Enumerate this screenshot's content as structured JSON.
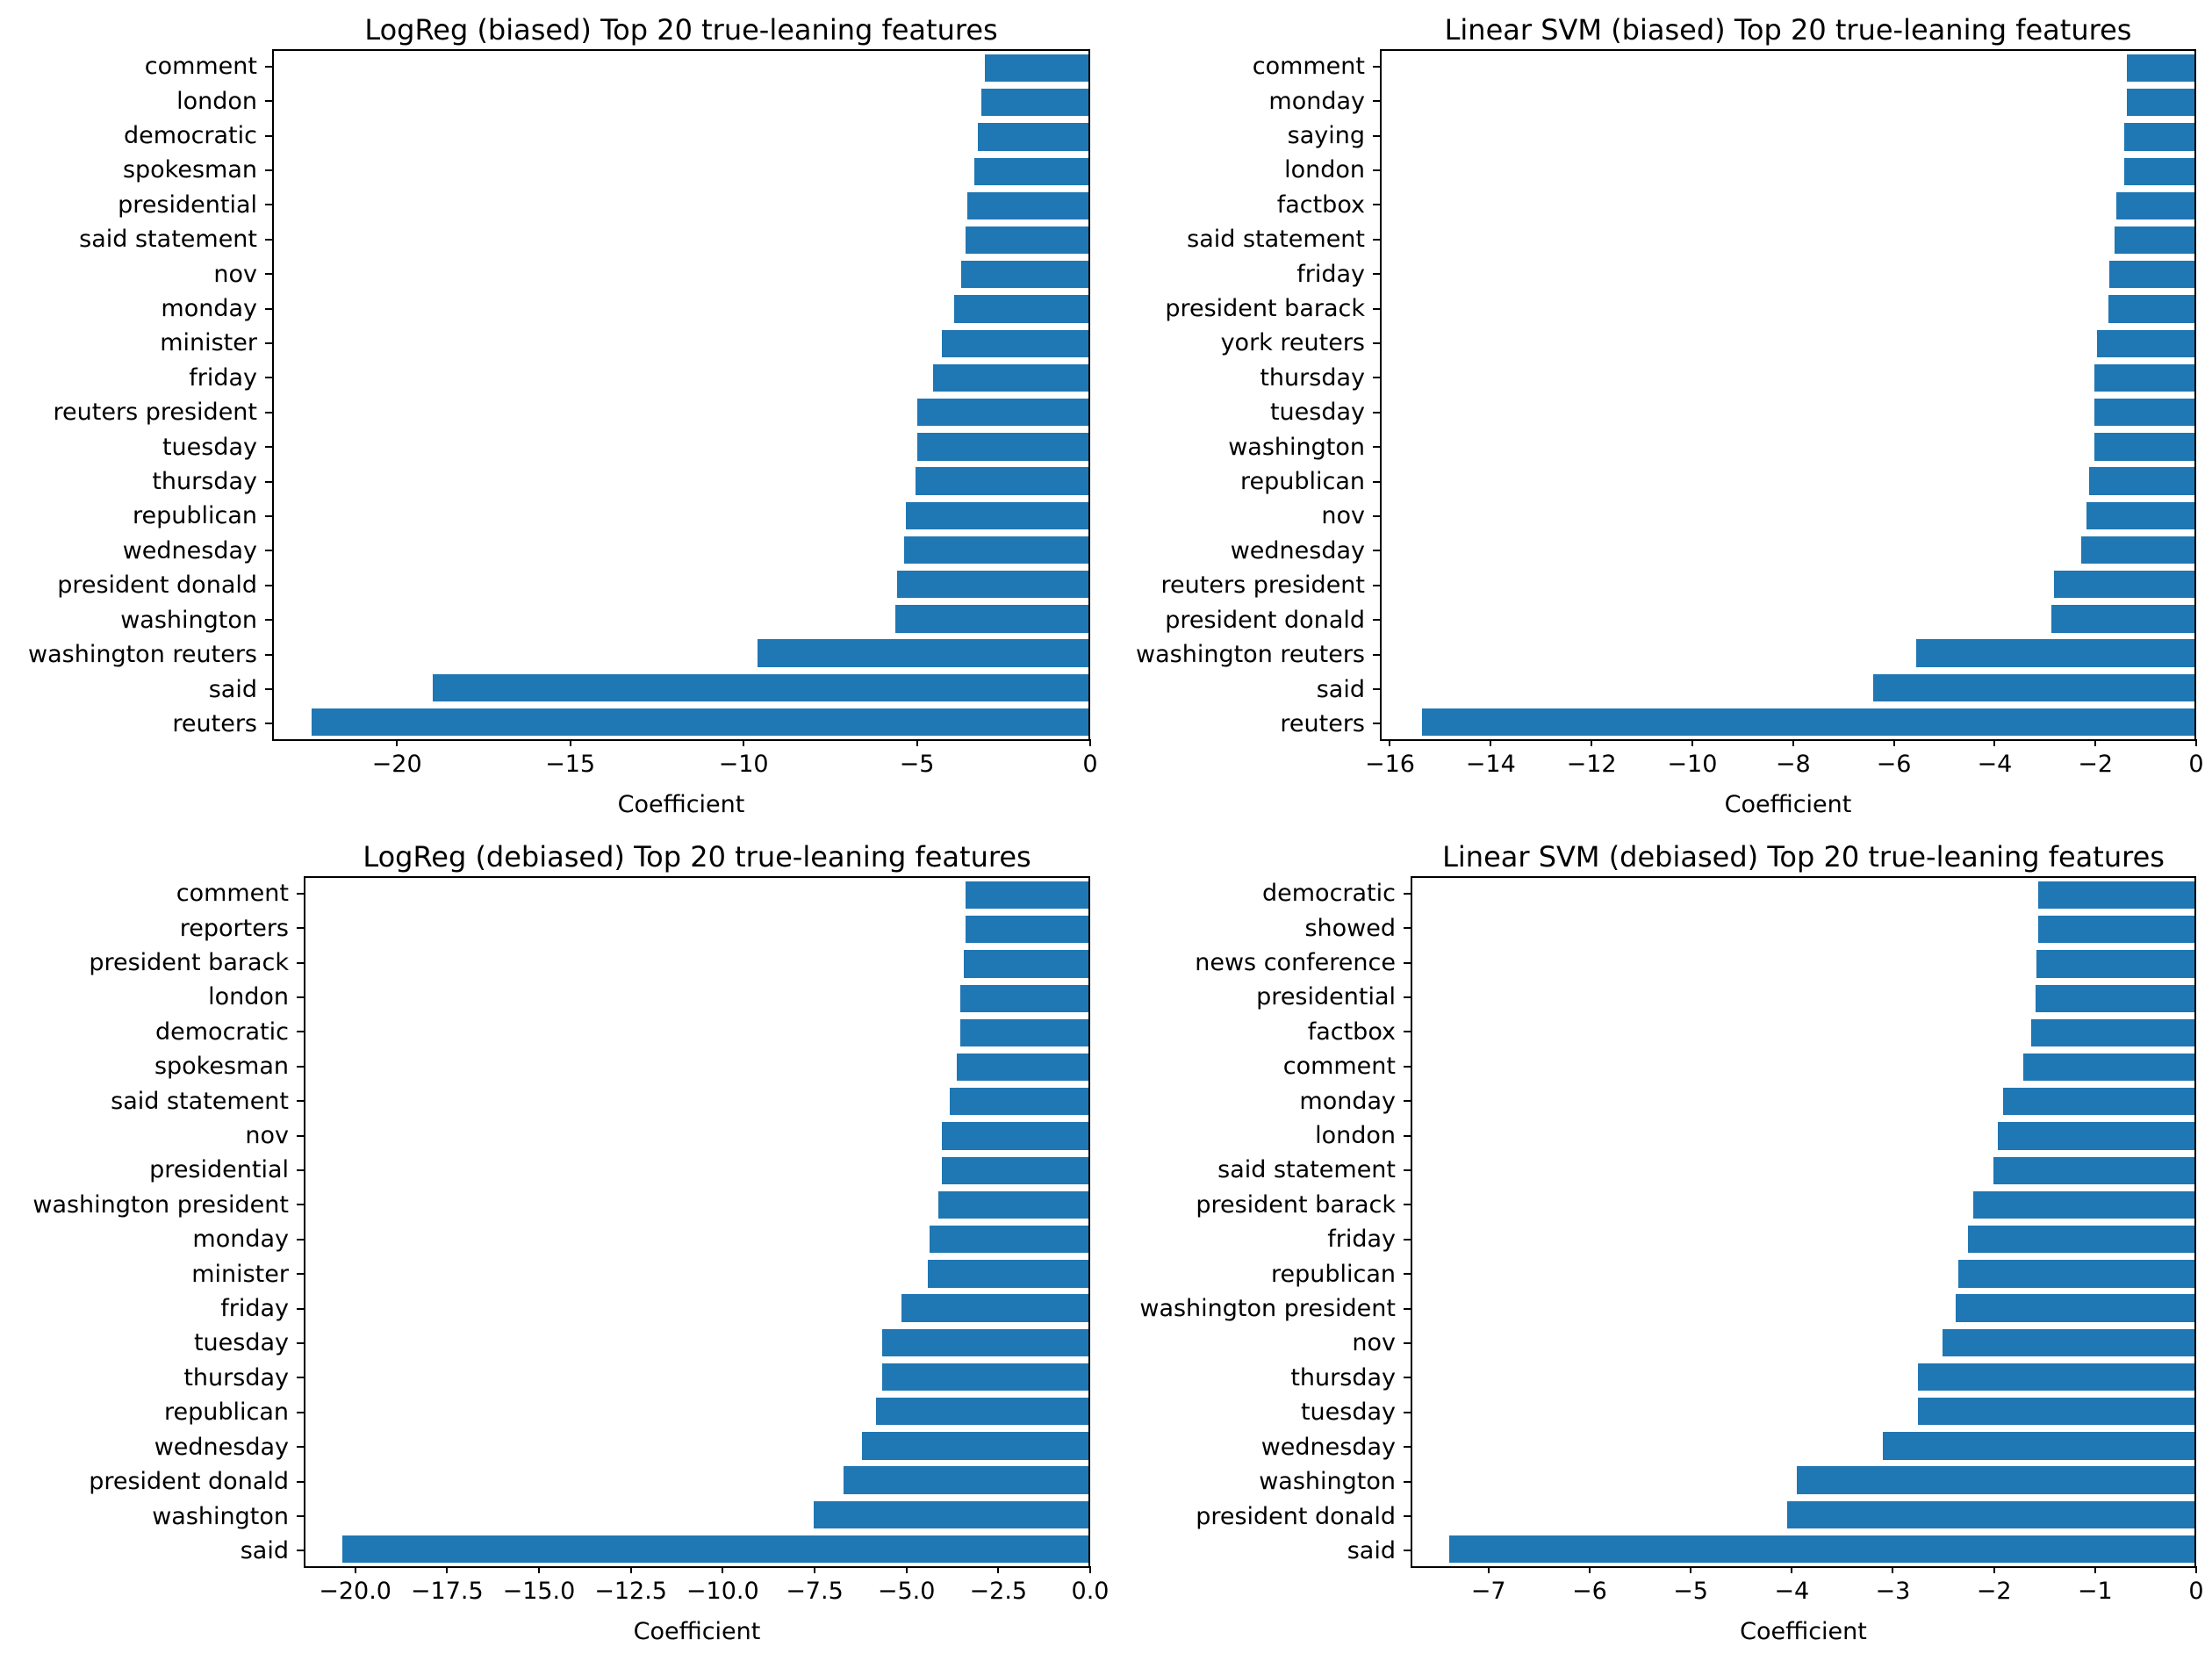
{
  "page": {
    "background": "#ffffff"
  },
  "colors": {
    "bar": "#1f77b4",
    "axis": "#000000",
    "text": "#000000"
  },
  "chart_data": [
    {
      "type": "bar",
      "orientation": "horizontal",
      "title": "LogReg (biased) Top 20 true-leaning features",
      "xlabel": "Coefficient",
      "grid": false,
      "legend": false,
      "xlim": [
        -23.6,
        0
      ],
      "xticks": [
        -20,
        -15,
        -10,
        -5,
        0
      ],
      "xtick_labels": [
        "−20",
        "−15",
        "−10",
        "−5",
        "0"
      ],
      "categories": [
        "comment",
        "london",
        "democratic",
        "spokesman",
        "presidential",
        "said statement",
        "nov",
        "monday",
        "minister",
        "friday",
        "reuters president",
        "tuesday",
        "thursday",
        "republican",
        "wednesday",
        "president donald",
        "washington",
        "washington reuters",
        "said",
        "reuters"
      ],
      "values": [
        -3.0,
        -3.1,
        -3.2,
        -3.3,
        -3.5,
        -3.55,
        -3.7,
        -3.9,
        -4.25,
        -4.5,
        -4.95,
        -4.95,
        -5.0,
        -5.3,
        -5.35,
        -5.55,
        -5.6,
        -9.6,
        -19.0,
        -22.5
      ]
    },
    {
      "type": "bar",
      "orientation": "horizontal",
      "title": "Linear SVM (biased) Top 20 true-leaning features",
      "xlabel": "Coefficient",
      "grid": false,
      "legend": false,
      "xlim": [
        -16.2,
        0
      ],
      "xticks": [
        -16,
        -14,
        -12,
        -10,
        -8,
        -6,
        -4,
        -2,
        0
      ],
      "xtick_labels": [
        "−16",
        "−14",
        "−12",
        "−10",
        "−8",
        "−6",
        "−4",
        "−2",
        "0"
      ],
      "categories": [
        "comment",
        "monday",
        "saying",
        "london",
        "factbox",
        "said statement",
        "friday",
        "president barack",
        "york reuters",
        "thursday",
        "tuesday",
        "washington",
        "republican",
        "nov",
        "wednesday",
        "reuters president",
        "president donald",
        "washington reuters",
        "said",
        "reuters"
      ],
      "values": [
        -1.35,
        -1.35,
        -1.4,
        -1.4,
        -1.55,
        -1.6,
        -1.7,
        -1.72,
        -1.95,
        -2.0,
        -2.0,
        -2.0,
        -2.1,
        -2.15,
        -2.25,
        -2.8,
        -2.85,
        -5.55,
        -6.4,
        -15.4
      ]
    },
    {
      "type": "bar",
      "orientation": "horizontal",
      "title": "LogReg (debiased) Top 20 true-leaning features",
      "xlabel": "Coefficient",
      "grid": false,
      "legend": false,
      "xlim": [
        -21.4,
        0
      ],
      "xticks": [
        -20.0,
        -17.5,
        -15.0,
        -12.5,
        -10.0,
        -7.5,
        -5.0,
        -2.5,
        0.0
      ],
      "xtick_labels": [
        "−20.0",
        "−17.5",
        "−15.0",
        "−12.5",
        "−10.0",
        "−7.5",
        "−5.0",
        "−2.5",
        "0.0"
      ],
      "categories": [
        "comment",
        "reporters",
        "president barack",
        "london",
        "democratic",
        "spokesman",
        "said statement",
        "nov",
        "presidential",
        "washington president",
        "monday",
        "minister",
        "friday",
        "tuesday",
        "thursday",
        "republican",
        "wednesday",
        "president donald",
        "washington",
        "said"
      ],
      "values": [
        -3.35,
        -3.35,
        -3.4,
        -3.5,
        -3.5,
        -3.6,
        -3.8,
        -4.0,
        -4.0,
        -4.1,
        -4.35,
        -4.4,
        -5.1,
        -5.65,
        -5.65,
        -5.8,
        -6.2,
        -6.7,
        -7.5,
        -20.4
      ]
    },
    {
      "type": "bar",
      "orientation": "horizontal",
      "title": "Linear SVM (debiased) Top 20 true-leaning features",
      "xlabel": "Coefficient",
      "grid": false,
      "legend": false,
      "xlim": [
        -7.77,
        0
      ],
      "xticks": [
        -7,
        -6,
        -5,
        -4,
        -3,
        -2,
        -1,
        0
      ],
      "xtick_labels": [
        "−7",
        "−6",
        "−5",
        "−4",
        "−3",
        "−2",
        "−1",
        "0"
      ],
      "categories": [
        "democratic",
        "showed",
        "news conference",
        "presidential",
        "factbox",
        "comment",
        "monday",
        "london",
        "said statement",
        "president barack",
        "friday",
        "republican",
        "washington president",
        "nov",
        "thursday",
        "tuesday",
        "wednesday",
        "washington",
        "president donald",
        "said"
      ],
      "values": [
        -1.55,
        -1.55,
        -1.57,
        -1.58,
        -1.62,
        -1.7,
        -1.9,
        -1.95,
        -2.0,
        -2.2,
        -2.25,
        -2.35,
        -2.37,
        -2.5,
        -2.75,
        -2.75,
        -3.1,
        -3.95,
        -4.05,
        -7.4
      ]
    }
  ]
}
